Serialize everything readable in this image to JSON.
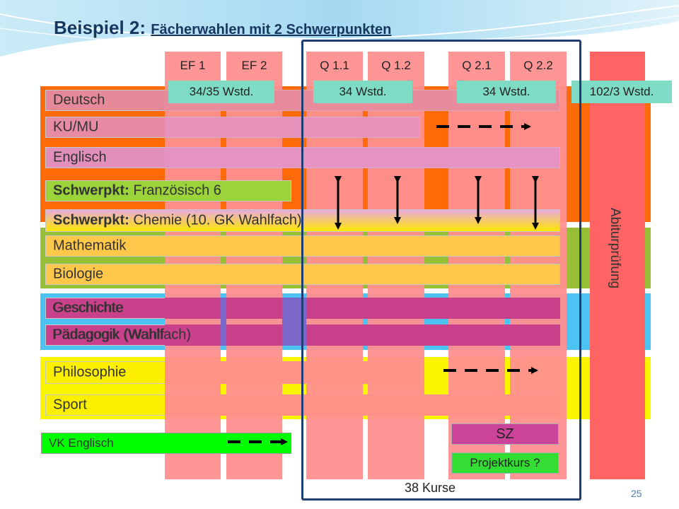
{
  "title": {
    "main": "Beispiel 2:",
    "sub": "Fächerwahlen mit 2 Schwerpunkten"
  },
  "columns": [
    "EF 1",
    "EF 2",
    "Q 1.1",
    "Q 1.2",
    "Q 2.1",
    "Q 2.2"
  ],
  "hours": [
    "34/35 Wstd.",
    "34 Wstd.",
    "34 Wstd.",
    "102/3 Wstd."
  ],
  "subjects": {
    "deutsch": "Deutsch",
    "kumu": "KU/MU",
    "englisch": "Englisch",
    "franz_bold": "Schwerpkt:",
    "franz_rest": "Französisch 6",
    "chemie_bold": "Schwerpkt:",
    "chemie_rest": "Chemie (10. GK Wahlfach)",
    "mathematik": "Mathematik",
    "biologie": "Biologie",
    "geschichte": "Geschichte",
    "paedagogik": "Pädagogik (Wahlfach)",
    "philosophie": "Philosophie",
    "sport": "Sport"
  },
  "vk": "VK Englisch",
  "sz": "SZ",
  "projektkurs": "Projektkurs ?",
  "abitur": "Abiturprüfung",
  "kurse": "38 Kurse",
  "page_number": "25",
  "colors": {
    "orange": "#ff6a08",
    "green": "#97bf35",
    "blue": "#4dc3f4",
    "yellow": "#fcf500",
    "semester_column": "#ff8f8f",
    "abitur": "#ff6464",
    "hours_chip": "#7fdcc4",
    "frame": "#1f3d73",
    "vk": "#00ff00",
    "sz": "#cc4499"
  }
}
